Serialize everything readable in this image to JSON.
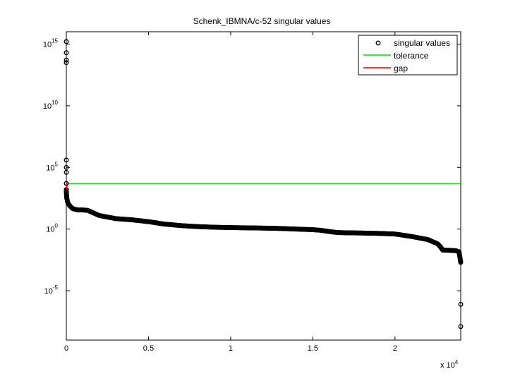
{
  "chart_data": {
    "type": "scatter",
    "title": "Schenk_IBMNA/c-52 singular values",
    "xlabel": "",
    "ylabel": "",
    "y_scale": "log",
    "xlim": [
      0,
      24000
    ],
    "ylim_exponent": [
      -9,
      16
    ],
    "x_ticks": [
      {
        "value": 0,
        "label": "0"
      },
      {
        "value": 5000,
        "label": "0.5"
      },
      {
        "value": 10000,
        "label": "1"
      },
      {
        "value": 15000,
        "label": "1.5"
      },
      {
        "value": 20000,
        "label": "2"
      }
    ],
    "x_multiplier": {
      "base": "x 10",
      "exponent": "4"
    },
    "y_ticks": [
      {
        "exponent": 15,
        "base": "10",
        "sup": "15"
      },
      {
        "exponent": 10,
        "base": "10",
        "sup": "10"
      },
      {
        "exponent": 5,
        "base": "10",
        "sup": "5"
      },
      {
        "exponent": 0,
        "base": "10",
        "sup": "0"
      },
      {
        "exponent": -5,
        "base": "10",
        "sup": "-5"
      }
    ],
    "legend_position": "top-right",
    "legend": [
      {
        "key": "singular_values",
        "label": "singular values",
        "marker": "circle",
        "color": "#000000"
      },
      {
        "key": "tolerance",
        "label": "tolerance",
        "marker": "line",
        "color": "#00dd00"
      },
      {
        "key": "gap",
        "label": "gap",
        "marker": "line",
        "color": "#ee0000"
      }
    ],
    "tolerance": {
      "y_exponent": 3.7,
      "color": "#00dd00"
    },
    "gap": {
      "x": 0,
      "y_exponent_from": 3.2,
      "y_exponent_to": 3.8,
      "color": "#ee0000"
    },
    "series": [
      {
        "name": "singular values",
        "color": "#000000",
        "outliers": [
          {
            "x": 0,
            "y_exponent": 15.2
          },
          {
            "x": 0,
            "y_exponent": 14.3
          },
          {
            "x": 0,
            "y_exponent": 13.7
          },
          {
            "x": 0,
            "y_exponent": 13.5
          },
          {
            "x": 0,
            "y_exponent": 5.6
          },
          {
            "x": 0,
            "y_exponent": 5.0
          },
          {
            "x": 0,
            "y_exponent": 4.6
          },
          {
            "x": 0,
            "y_exponent": 3.7
          },
          {
            "x": 24000,
            "y_exponent": -6.1
          },
          {
            "x": 24000,
            "y_exponent": -7.9
          }
        ],
        "curve": [
          {
            "x": 0,
            "y_exponent": 3.2
          },
          {
            "x": 10,
            "y_exponent": 2.8
          },
          {
            "x": 30,
            "y_exponent": 2.5
          },
          {
            "x": 60,
            "y_exponent": 2.3
          },
          {
            "x": 100,
            "y_exponent": 2.1
          },
          {
            "x": 200,
            "y_exponent": 1.9
          },
          {
            "x": 400,
            "y_exponent": 1.65
          },
          {
            "x": 700,
            "y_exponent": 1.55
          },
          {
            "x": 1000,
            "y_exponent": 1.55
          },
          {
            "x": 1300,
            "y_exponent": 1.52
          },
          {
            "x": 1500,
            "y_exponent": 1.4
          },
          {
            "x": 2000,
            "y_exponent": 1.1
          },
          {
            "x": 3000,
            "y_exponent": 0.85
          },
          {
            "x": 4000,
            "y_exponent": 0.75
          },
          {
            "x": 5000,
            "y_exponent": 0.6
          },
          {
            "x": 6000,
            "y_exponent": 0.4
          },
          {
            "x": 7000,
            "y_exponent": 0.28
          },
          {
            "x": 8000,
            "y_exponent": 0.2
          },
          {
            "x": 9000,
            "y_exponent": 0.15
          },
          {
            "x": 10000,
            "y_exponent": 0.12
          },
          {
            "x": 11000,
            "y_exponent": 0.1
          },
          {
            "x": 12000,
            "y_exponent": 0.08
          },
          {
            "x": 13000,
            "y_exponent": 0.05
          },
          {
            "x": 14000,
            "y_exponent": 0.0
          },
          {
            "x": 15000,
            "y_exponent": -0.05
          },
          {
            "x": 15500,
            "y_exponent": -0.1
          },
          {
            "x": 16000,
            "y_exponent": -0.2
          },
          {
            "x": 16500,
            "y_exponent": -0.28
          },
          {
            "x": 17000,
            "y_exponent": -0.3
          },
          {
            "x": 18000,
            "y_exponent": -0.32
          },
          {
            "x": 19000,
            "y_exponent": -0.35
          },
          {
            "x": 20000,
            "y_exponent": -0.4
          },
          {
            "x": 21000,
            "y_exponent": -0.6
          },
          {
            "x": 22000,
            "y_exponent": -0.85
          },
          {
            "x": 22600,
            "y_exponent": -1.2
          },
          {
            "x": 22800,
            "y_exponent": -1.5
          },
          {
            "x": 22900,
            "y_exponent": -1.7
          },
          {
            "x": 23300,
            "y_exponent": -1.72
          },
          {
            "x": 23700,
            "y_exponent": -1.75
          },
          {
            "x": 23900,
            "y_exponent": -1.85
          },
          {
            "x": 24000,
            "y_exponent": -2.7
          }
        ]
      }
    ]
  }
}
